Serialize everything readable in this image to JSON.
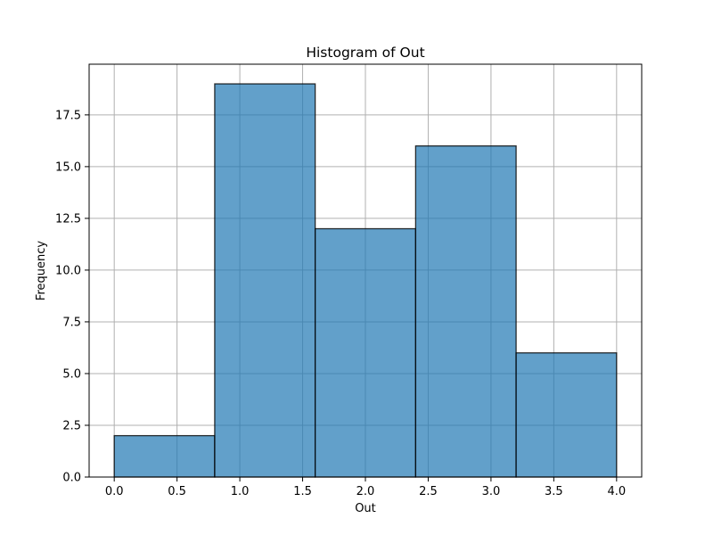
{
  "chart_data": {
    "type": "histogram",
    "title": "Histogram of Out",
    "xlabel": "Out",
    "ylabel": "Frequency",
    "bins": [
      {
        "start": 0.0,
        "end": 0.8,
        "count": 2
      },
      {
        "start": 0.8,
        "end": 1.6,
        "count": 19
      },
      {
        "start": 1.6,
        "end": 2.4,
        "count": 12
      },
      {
        "start": 2.4,
        "end": 3.2,
        "count": 16
      },
      {
        "start": 3.2,
        "end": 4.0,
        "count": 6
      }
    ],
    "xlim": [
      -0.2,
      4.2
    ],
    "ylim": [
      0,
      19.95
    ],
    "xticks": [
      0.0,
      0.5,
      1.0,
      1.5,
      2.0,
      2.5,
      3.0,
      3.5,
      4.0
    ],
    "xtick_labels": [
      "0.0",
      "0.5",
      "1.0",
      "1.5",
      "2.0",
      "2.5",
      "3.0",
      "3.5",
      "4.0"
    ],
    "yticks": [
      0.0,
      2.5,
      5.0,
      7.5,
      10.0,
      12.5,
      15.0,
      17.5
    ],
    "ytick_labels": [
      "0.0",
      "2.5",
      "5.0",
      "7.5",
      "10.0",
      "12.5",
      "15.0",
      "17.5"
    ],
    "grid": true,
    "legend": false,
    "colors": {
      "bar_fill": "#1f77b4",
      "bar_fill_opacity": 0.7,
      "bar_edge": "#000000",
      "grid": "#b0b0b0",
      "axes": "#000000"
    }
  }
}
